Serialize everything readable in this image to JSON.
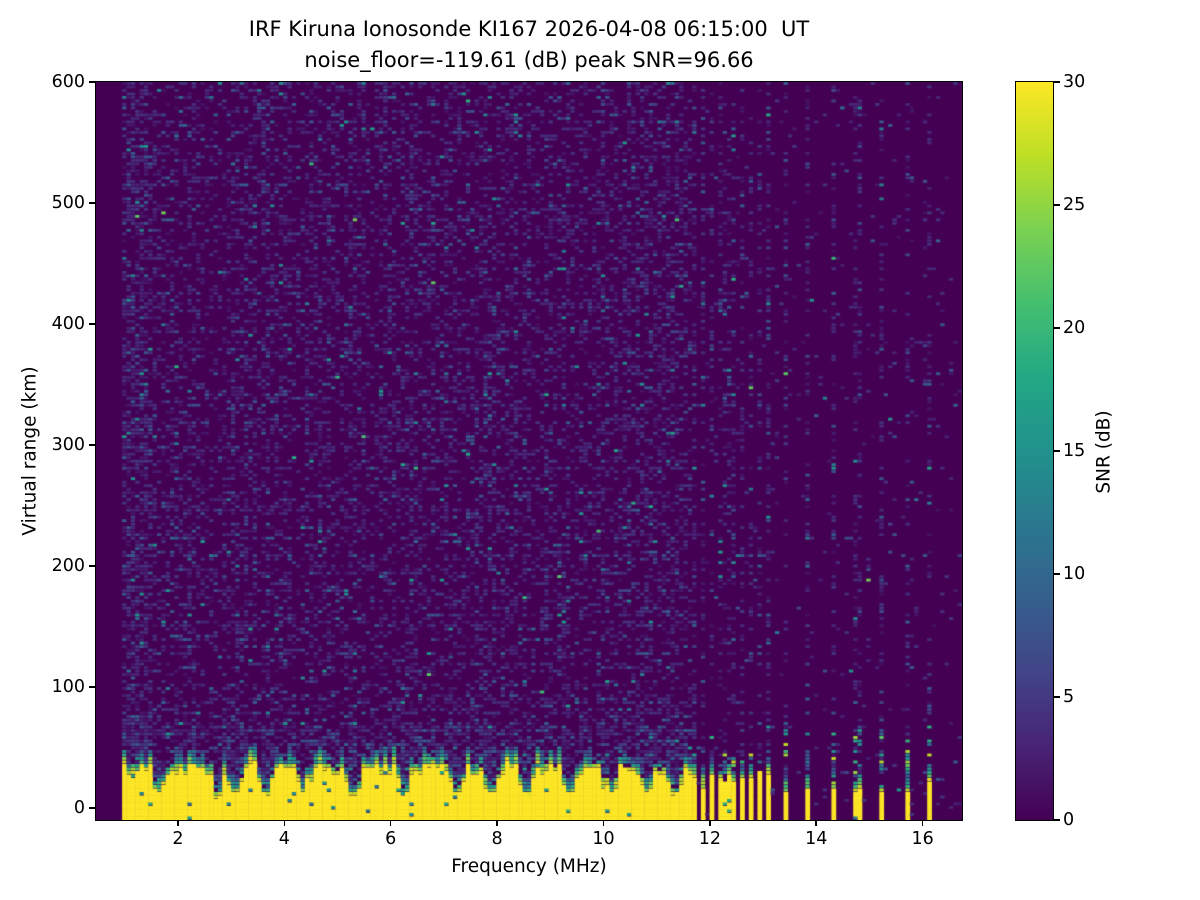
{
  "chart_data": {
    "type": "heatmap",
    "title": "IRF Kiruna Ionosonde KI167 2026-04-08 06:15:00  UT",
    "subtitle": "noise_floor=-119.61 (dB) peak SNR=96.66",
    "xlabel": "Frequency (MHz)",
    "ylabel": "Virtual range (km)",
    "colorbar_label": "SNR (dB)",
    "noise_floor_db": -119.61,
    "peak_snr_db": 96.66,
    "station": "KI167",
    "timestamp": "2026-04-08 06:15:00 UT",
    "xlim": [
      0.46,
      16.74
    ],
    "ylim": [
      -10,
      600
    ],
    "clim": [
      0,
      30
    ],
    "xticks": [
      2,
      4,
      6,
      8,
      10,
      12,
      14,
      16
    ],
    "yticks": [
      0,
      100,
      200,
      300,
      400,
      500,
      600
    ],
    "colorbar_ticks": [
      0,
      5,
      10,
      15,
      20,
      25,
      30
    ],
    "grid": false,
    "legend_position": "colorbar-right",
    "colormap": "viridis",
    "colormap_stops": [
      [
        0.0,
        "#440154"
      ],
      [
        0.1,
        "#482475"
      ],
      [
        0.2,
        "#414487"
      ],
      [
        0.3,
        "#355f8d"
      ],
      [
        0.4,
        "#2a788e"
      ],
      [
        0.5,
        "#21918c"
      ],
      [
        0.6,
        "#22a884"
      ],
      [
        0.7,
        "#44bf70"
      ],
      [
        0.8,
        "#7ad151"
      ],
      [
        0.9,
        "#bddf26"
      ],
      [
        1.0,
        "#fde725"
      ]
    ],
    "features": {
      "data_start_mhz": 0.95,
      "continuous_sweep_end_mhz": 11.67,
      "freq_bin_mhz": 0.082,
      "range_bin_km": 2.9,
      "ground_echo_band": {
        "top_km": 30,
        "top_jitter_km": 12,
        "fringe_km": 16,
        "notch_freqs_mhz": [
          1.65,
          2.75,
          3.1,
          3.65,
          4.35,
          5.3,
          6.25,
          7.25,
          7.9,
          8.55,
          9.4,
          10.15,
          10.8,
          11.35
        ],
        "notch_top_km": 8
      },
      "cluster_bars": {
        "start_mhz": 11.7,
        "step_mhz": 0.155,
        "count": 10
      },
      "sparse_bars_mhz": [
        13.4,
        13.85,
        14.3,
        14.78,
        15.25,
        15.7,
        16.15
      ],
      "noise": {
        "background_density": 0.33,
        "low_freq_boost_below_mhz": 1.6,
        "near_band_boost_km": 95,
        "quiet_density": 0.035,
        "bar_column_density": 0.3,
        "seed": 20260408
      }
    }
  }
}
